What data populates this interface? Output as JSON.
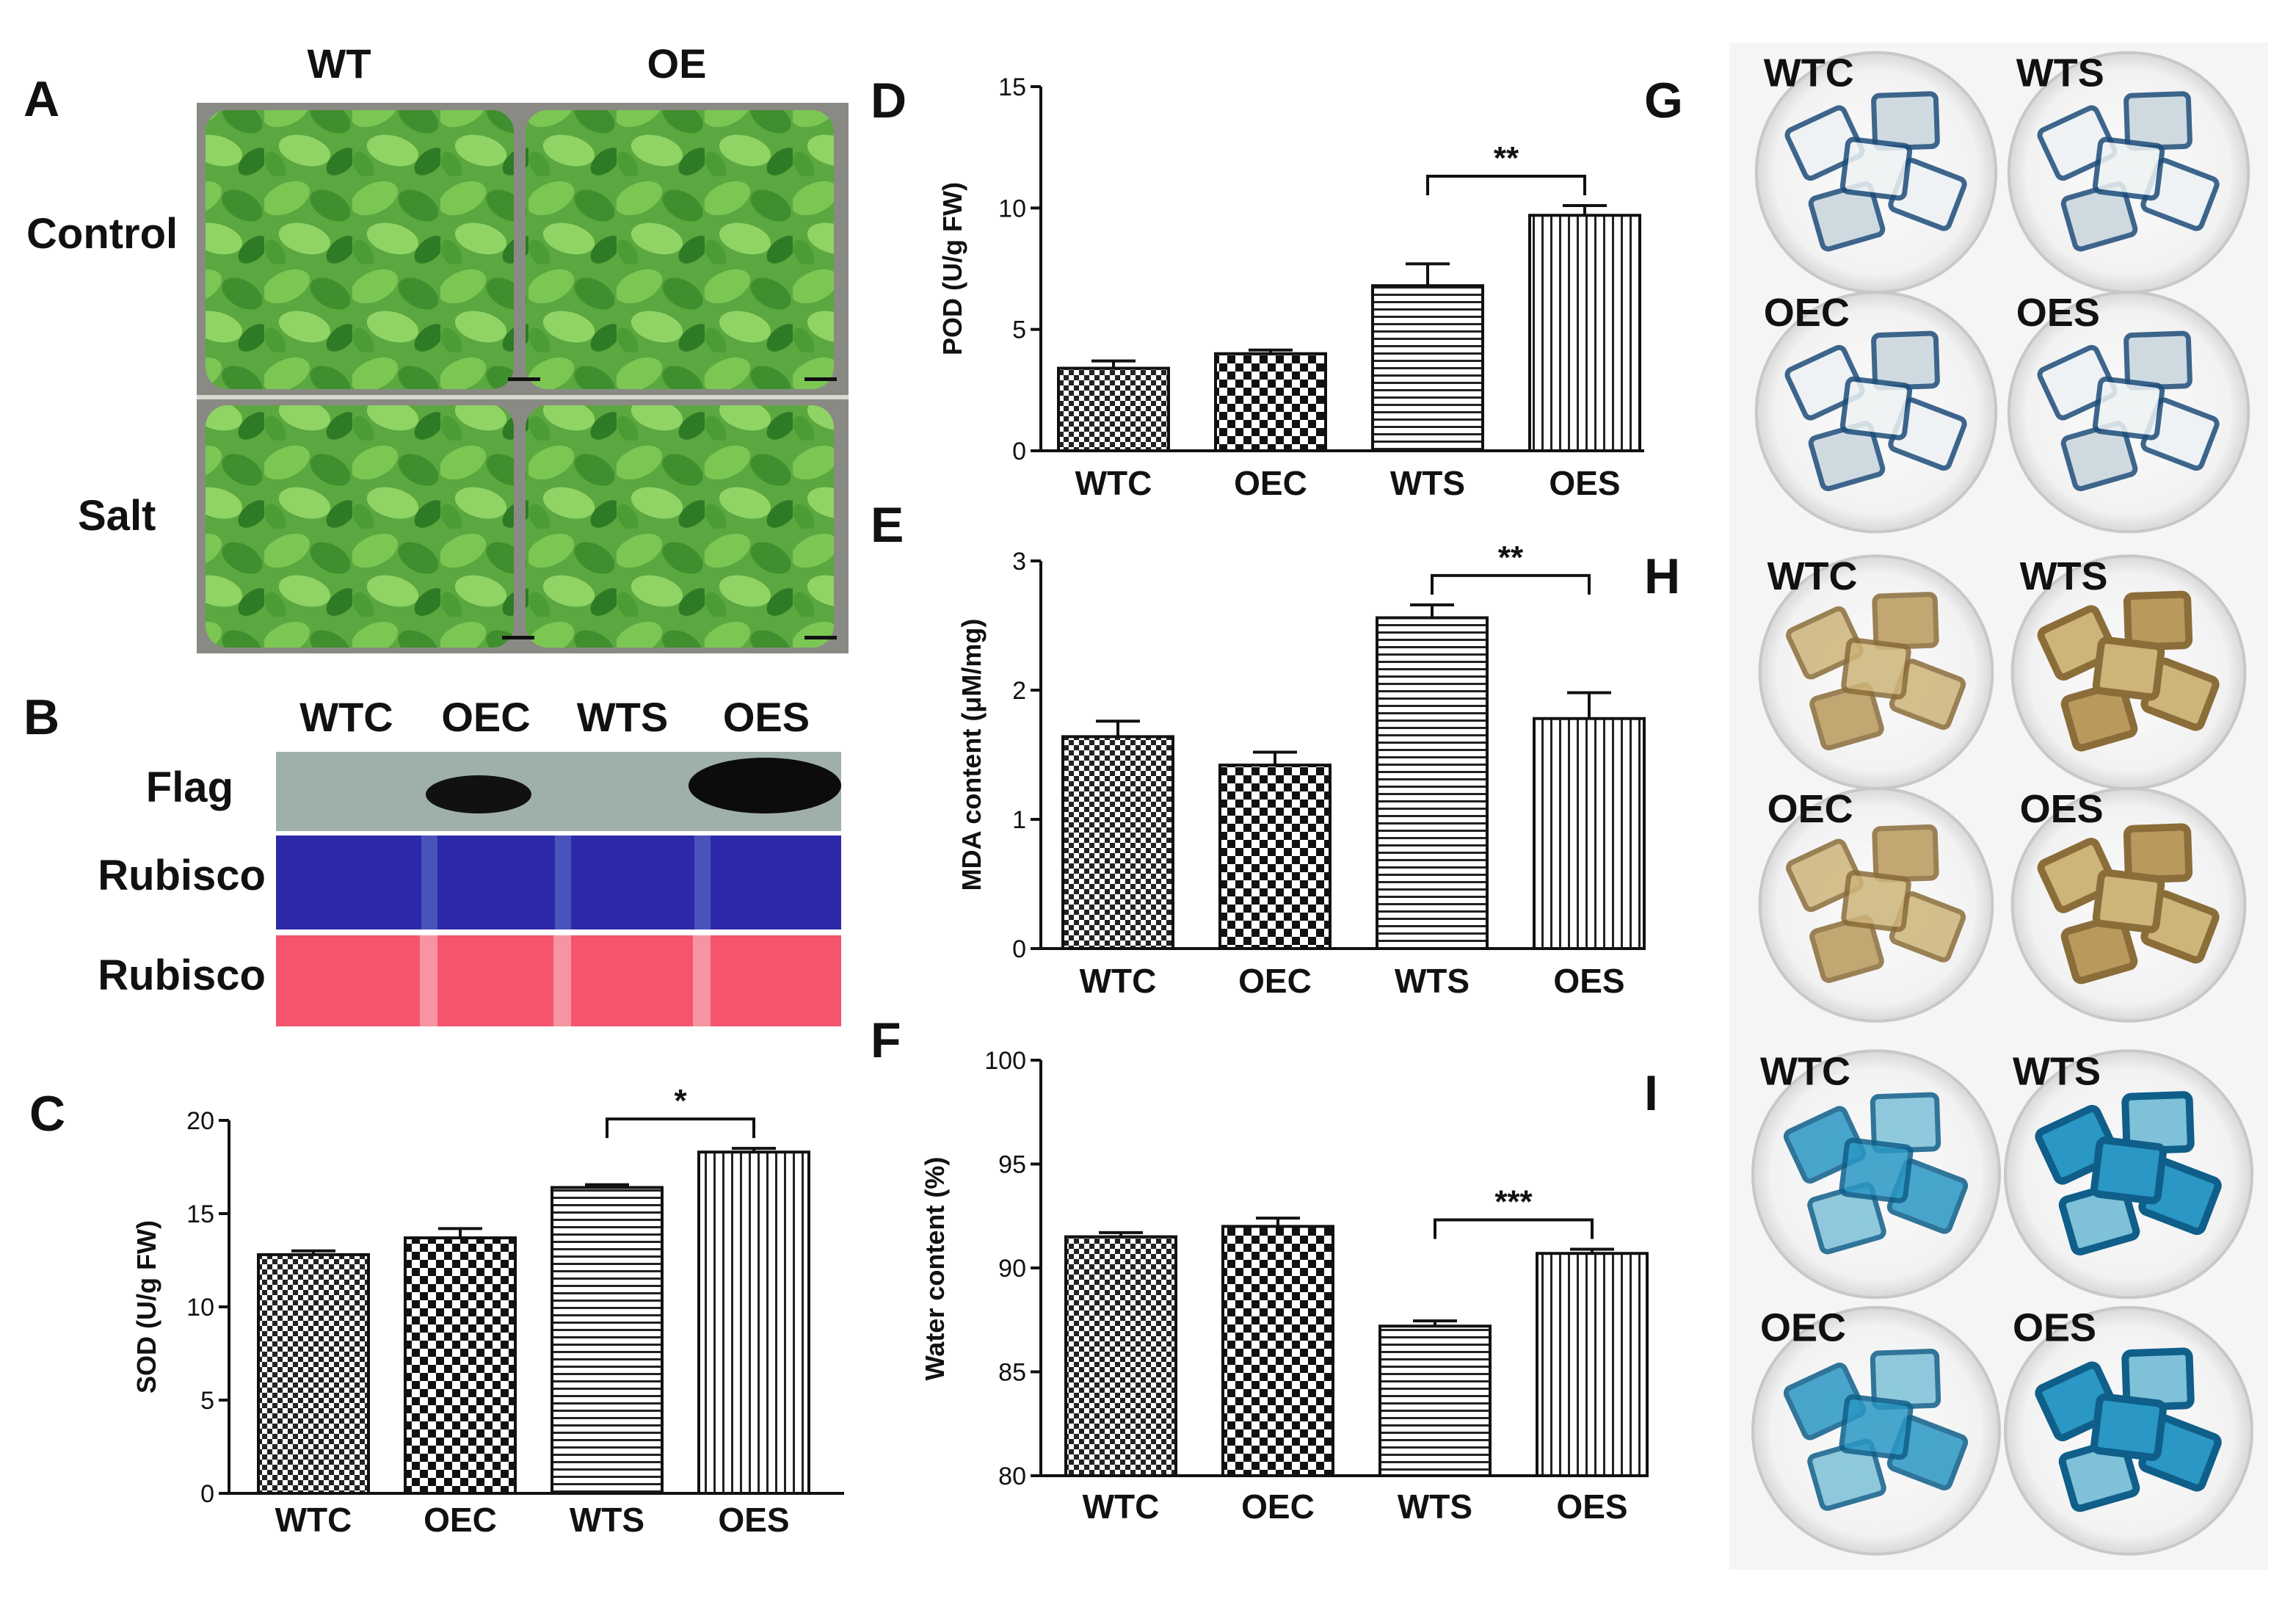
{
  "figure": {
    "panels": {
      "A": {
        "letter": "A",
        "col_headers": [
          "WT",
          "OE"
        ],
        "row_labels": [
          "Control",
          "Salt"
        ]
      },
      "B": {
        "letter": "B",
        "lanes": [
          "WTC",
          "OEC",
          "WTS",
          "OES"
        ],
        "rows": [
          "Flag",
          "Rubisco",
          "Rubisco"
        ]
      },
      "G": {
        "letter": "G",
        "plates": [
          "WTC",
          "WTS",
          "OEC",
          "OES"
        ]
      },
      "H": {
        "letter": "H",
        "plates": [
          "WTC",
          "WTS",
          "OEC",
          "OES"
        ]
      },
      "I": {
        "letter": "I",
        "plates": [
          "WTC",
          "WTS",
          "OEC",
          "OES"
        ]
      }
    },
    "colors": {
      "plant_green": "#4fa33a",
      "blot_blue": "#2c2aa8",
      "blot_pink": "#f4546e",
      "nbt_blue": "#1e4d7a",
      "dab_brown": "#b99a5c",
      "evans_blue": "#1a8ab5"
    }
  },
  "chart_data": [
    {
      "id": "C",
      "letter": "C",
      "type": "bar",
      "categories": [
        "WTC",
        "OEC",
        "WTS",
        "OES"
      ],
      "values": [
        12.8,
        13.7,
        16.4,
        18.3
      ],
      "errors": [
        0.2,
        0.5,
        0.15,
        0.2
      ],
      "patterns": [
        "check-small",
        "check-large",
        "hlines",
        "vlines"
      ],
      "ylabel": "SOD (U/g FW)",
      "ylim": [
        0,
        20
      ],
      "yticks": [
        "0",
        "5",
        "10",
        "15",
        "20"
      ],
      "significance": {
        "from": 2,
        "to": 3,
        "label": "*"
      }
    },
    {
      "id": "D",
      "letter": "D",
      "type": "bar",
      "categories": [
        "WTC",
        "OEC",
        "WTS",
        "OES"
      ],
      "values": [
        3.4,
        4.0,
        6.8,
        9.7
      ],
      "errors": [
        0.3,
        0.15,
        0.9,
        0.4
      ],
      "patterns": [
        "check-small",
        "check-large",
        "hlines",
        "vlines"
      ],
      "ylabel": "POD (U/g FW)",
      "ylim": [
        0,
        15
      ],
      "yticks": [
        "0",
        "5",
        "10",
        "15"
      ],
      "significance": {
        "from": 2,
        "to": 3,
        "label": "**"
      }
    },
    {
      "id": "E",
      "letter": "E",
      "type": "bar",
      "categories": [
        "WTC",
        "OEC",
        "WTS",
        "OES"
      ],
      "values": [
        1.64,
        1.42,
        2.56,
        1.78
      ],
      "errors": [
        0.12,
        0.1,
        0.1,
        0.2
      ],
      "patterns": [
        "check-small",
        "check-large",
        "hlines",
        "vlines"
      ],
      "ylabel": "MDA content (μM/mg)",
      "ylim": [
        0,
        3
      ],
      "yticks": [
        "0",
        "1",
        "2",
        "3"
      ],
      "significance": {
        "from": 2,
        "to": 3,
        "label": "**"
      }
    },
    {
      "id": "F",
      "letter": "F",
      "type": "bar",
      "categories": [
        "WTC",
        "OEC",
        "WTS",
        "OES"
      ],
      "values": [
        91.5,
        92.0,
        87.2,
        90.7
      ],
      "errors": [
        0.2,
        0.4,
        0.25,
        0.2
      ],
      "patterns": [
        "check-small",
        "check-large",
        "hlines",
        "vlines"
      ],
      "ylabel": "Water content (%)",
      "ylim": [
        80,
        100
      ],
      "yticks": [
        "80",
        "85",
        "90",
        "95",
        "100"
      ],
      "significance": {
        "from": 2,
        "to": 3,
        "label": "***"
      }
    }
  ]
}
